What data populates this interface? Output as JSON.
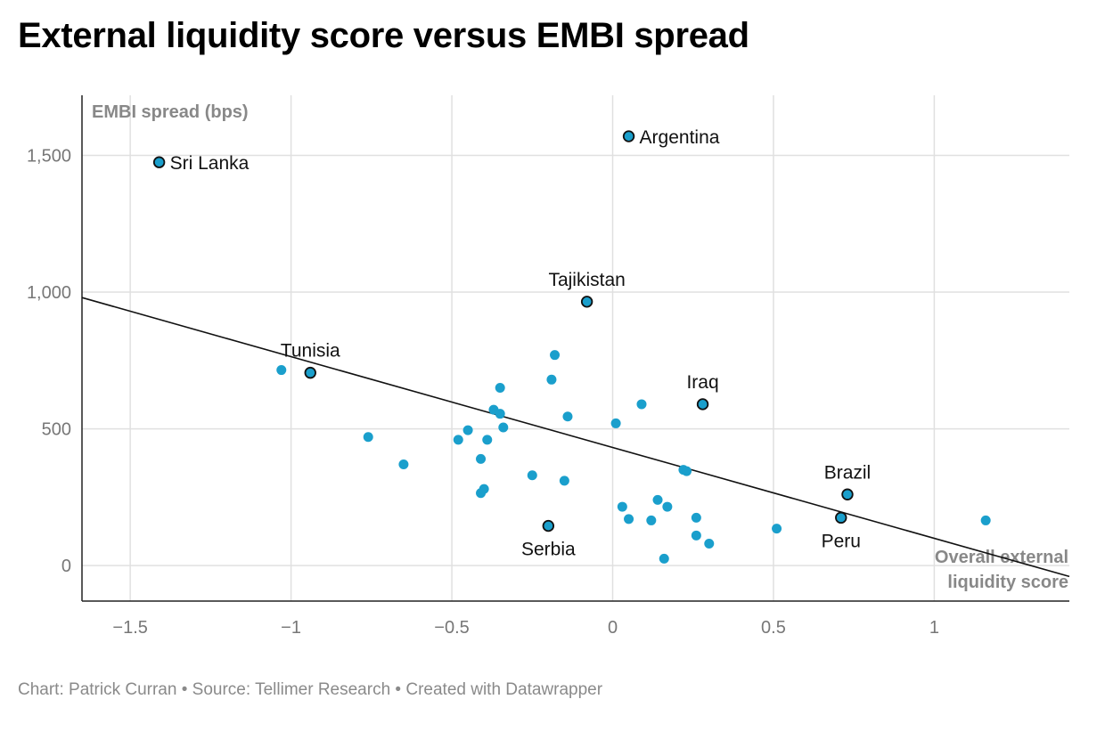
{
  "title": "External liquidity score versus EMBI spread",
  "footer": {
    "author": "Chart: Patrick Curran",
    "separator": " • ",
    "source": "Source: Tellimer Research",
    "credit": "Created with Datawrapper"
  },
  "chart_data": {
    "type": "scatter",
    "xlabel_lines": [
      "Overall external",
      "liquidity score"
    ],
    "ylabel": "EMBI spread (bps)",
    "xlim": [
      -1.65,
      1.42
    ],
    "ylim": [
      -130,
      1720
    ],
    "x_ticks": [
      -1.5,
      -1,
      -0.5,
      0,
      0.5,
      1
    ],
    "x_tick_labels": [
      "−1.5",
      "−1",
      "−0.5",
      "0",
      "0.5",
      "1"
    ],
    "y_ticks": [
      0,
      500,
      1000,
      1500
    ],
    "y_tick_labels": [
      "0",
      "500",
      "1,000",
      "1,500"
    ],
    "grid": true,
    "colors": {
      "point": "#1a9fcc",
      "highlight_stroke": "#111111",
      "trend": "#111111",
      "grid": "#e0e0e0"
    },
    "trendline": {
      "x": [
        -1.65,
        1.42
      ],
      "y": [
        980,
        -40
      ]
    },
    "points": [
      {
        "x": -1.41,
        "y": 1475,
        "highlight": true,
        "label": "Sri Lanka",
        "label_pos": "right"
      },
      {
        "x": 0.05,
        "y": 1570,
        "highlight": true,
        "label": "Argentina",
        "label_pos": "right"
      },
      {
        "x": -0.08,
        "y": 965,
        "highlight": true,
        "label": "Tajikistan",
        "label_pos": "above"
      },
      {
        "x": -0.94,
        "y": 705,
        "highlight": true,
        "label": "Tunisia",
        "label_pos": "above"
      },
      {
        "x": 0.28,
        "y": 590,
        "highlight": true,
        "label": "Iraq",
        "label_pos": "above"
      },
      {
        "x": 0.73,
        "y": 260,
        "highlight": true,
        "label": "Brazil",
        "label_pos": "above"
      },
      {
        "x": 0.71,
        "y": 175,
        "highlight": true,
        "label": "Peru",
        "label_pos": "below"
      },
      {
        "x": -0.2,
        "y": 145,
        "highlight": true,
        "label": "Serbia",
        "label_pos": "below"
      },
      {
        "x": -1.03,
        "y": 715
      },
      {
        "x": -0.76,
        "y": 470
      },
      {
        "x": -0.65,
        "y": 370
      },
      {
        "x": -0.48,
        "y": 460
      },
      {
        "x": -0.45,
        "y": 495
      },
      {
        "x": -0.41,
        "y": 390
      },
      {
        "x": -0.41,
        "y": 265
      },
      {
        "x": -0.4,
        "y": 280
      },
      {
        "x": -0.39,
        "y": 460
      },
      {
        "x": -0.37,
        "y": 570
      },
      {
        "x": -0.35,
        "y": 650
      },
      {
        "x": -0.35,
        "y": 555
      },
      {
        "x": -0.34,
        "y": 505
      },
      {
        "x": -0.25,
        "y": 330
      },
      {
        "x": -0.19,
        "y": 680
      },
      {
        "x": -0.18,
        "y": 770
      },
      {
        "x": -0.15,
        "y": 310
      },
      {
        "x": -0.14,
        "y": 545
      },
      {
        "x": 0.01,
        "y": 520
      },
      {
        "x": 0.03,
        "y": 215
      },
      {
        "x": 0.05,
        "y": 170
      },
      {
        "x": 0.09,
        "y": 590
      },
      {
        "x": 0.12,
        "y": 165
      },
      {
        "x": 0.14,
        "y": 240
      },
      {
        "x": 0.16,
        "y": 25
      },
      {
        "x": 0.17,
        "y": 215
      },
      {
        "x": 0.22,
        "y": 350
      },
      {
        "x": 0.23,
        "y": 345
      },
      {
        "x": 0.26,
        "y": 175
      },
      {
        "x": 0.26,
        "y": 110
      },
      {
        "x": 0.3,
        "y": 80
      },
      {
        "x": 0.51,
        "y": 135
      },
      {
        "x": 1.16,
        "y": 165
      }
    ]
  }
}
